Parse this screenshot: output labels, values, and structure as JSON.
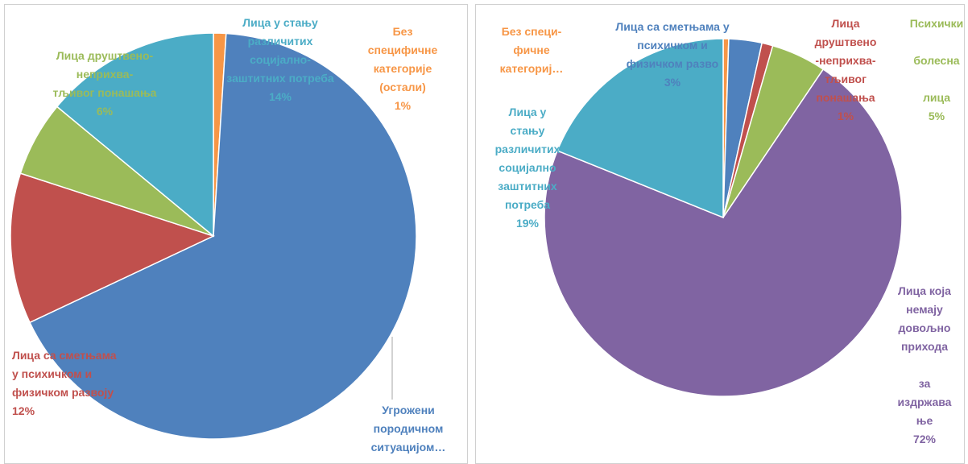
{
  "chart_data": [
    {
      "type": "pie",
      "categories": [
        "Без\nспецифичне\nкатегорије\n(остали)",
        "Угрожени\nпородичном\nситуацијом…",
        "Лица са сметњама\nу психичком и\nфизичком развоју",
        "Лица друштвено-\nнеприхва-\nтљивог понашања",
        "Лица у стању\nразличитих\nсоцијално-\nзаштитних потреба"
      ],
      "values": [
        1,
        67,
        12,
        6,
        14
      ],
      "value_labels": [
        "1%",
        null,
        "12%",
        "6%",
        "14%"
      ],
      "colors": [
        "#f79646",
        "#4f81bd",
        "#c0504d",
        "#9bbb59",
        "#4bacc6"
      ]
    },
    {
      "type": "pie",
      "categories": [
        "Без специ-\nфичне\nкатегориј…",
        "Лица са сметњама у\nпсихичком и\nфизичком разво",
        "Лица\nдруштвено\n-неприхва-\nтљивог\nпонашања",
        "Психички\n\nболесна\n\nлица",
        "Лица која\nнемају\nдовољно\nприхода\n\nза\nиздржава\nње",
        "Лица у\nстању\nразличитих\nсоцијално\nзаштитних\nпотреба"
      ],
      "values": [
        0.5,
        3,
        1,
        5,
        72,
        19
      ],
      "value_labels": [
        null,
        "3%",
        "1%",
        "5%",
        "72%",
        "19%"
      ],
      "colors": [
        "#f79646",
        "#4f81bd",
        "#c0504d",
        "#9bbb59",
        "#8064a2",
        "#4bacc6"
      ]
    }
  ]
}
